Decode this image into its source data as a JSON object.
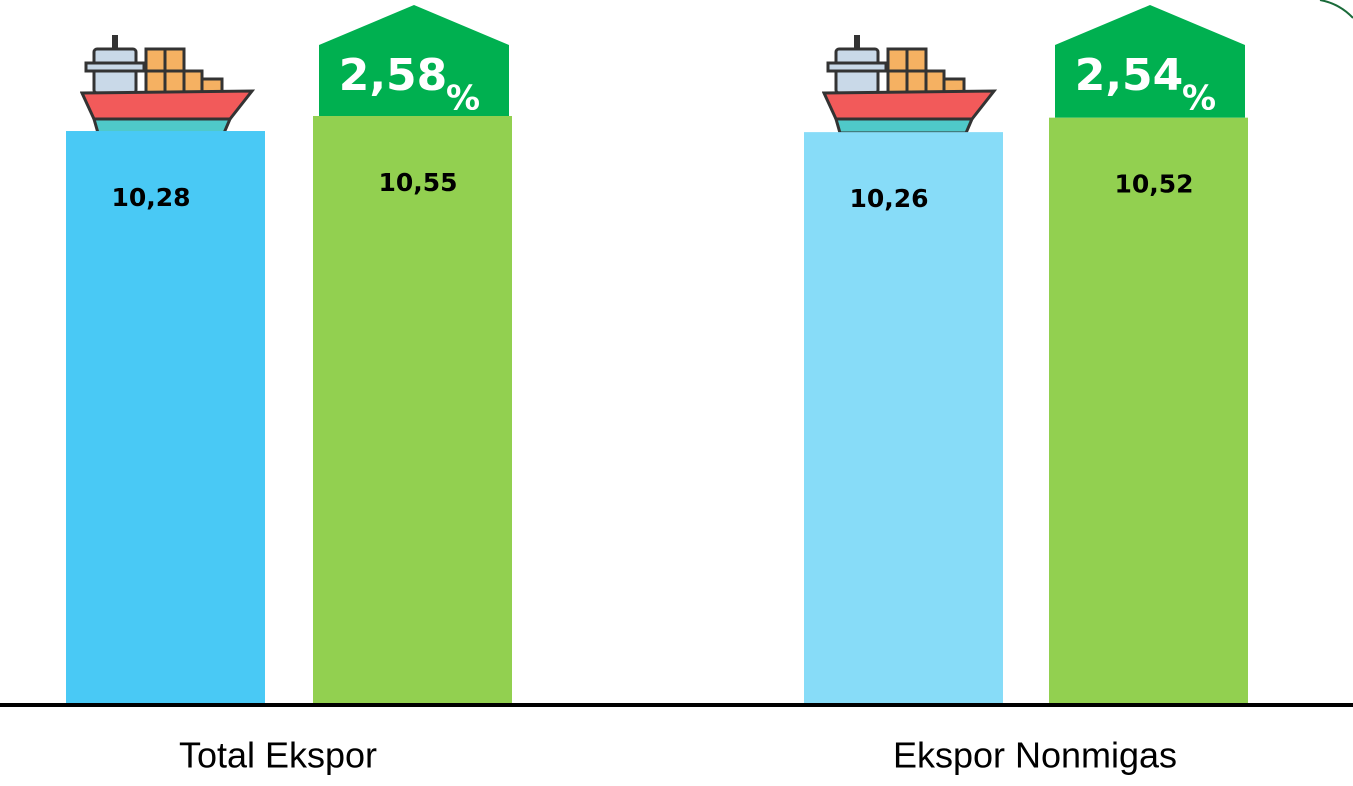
{
  "chart_data": {
    "type": "bar",
    "categories": [
      "Total Ekspor",
      "Ekspor Nonmigas"
    ],
    "series": [
      {
        "colors": [
          "#49c9f5",
          "#87dcf8"
        ],
        "values": [
          10.28,
          10.26
        ],
        "value_labels": [
          "10,28",
          "10,26"
        ]
      },
      {
        "colors": [
          "#92d050",
          "#92d050"
        ],
        "values": [
          10.55,
          10.52
        ],
        "value_labels": [
          "10,55",
          "10,52"
        ]
      }
    ],
    "annotations": [
      {
        "text": "2,58",
        "unit": "%"
      },
      {
        "text": "2,54",
        "unit": "%"
      }
    ],
    "badge_color": "#00b050"
  }
}
